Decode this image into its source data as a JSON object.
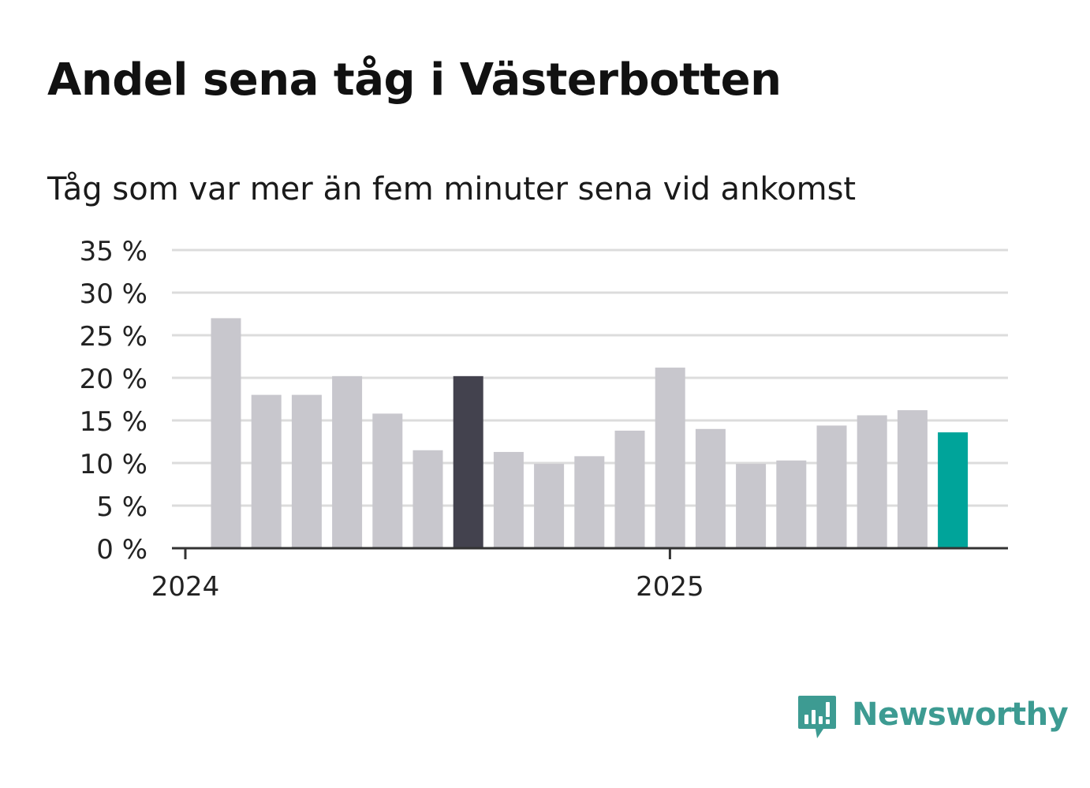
{
  "title": "Andel sena tåg i Västerbotten",
  "subtitle": "Tåg som var mer än fem minuter sena vid ankomst",
  "logo": {
    "text": "Newsworthy",
    "icon": "newsworthy-logo-icon",
    "color": "#3d9b92"
  },
  "chart_data": {
    "type": "bar",
    "x": [
      "2024-02",
      "2024-03",
      "2024-04",
      "2024-05",
      "2024-06",
      "2024-07",
      "2024-08",
      "2024-09",
      "2024-10",
      "2024-11",
      "2024-12",
      "2025-01",
      "2025-02",
      "2025-03",
      "2025-04",
      "2025-05",
      "2025-06",
      "2025-07",
      "2025-08"
    ],
    "values": [
      27,
      18,
      18,
      20.2,
      15.8,
      11.5,
      20.2,
      11.3,
      9.9,
      10.8,
      13.8,
      21.2,
      14,
      9.9,
      10.3,
      14.4,
      15.6,
      16.2,
      13.6
    ],
    "colors": {
      "default": "#c8c7cd",
      "highlight": "#43424e",
      "latest": "#00a49a"
    },
    "highlight_index": 6,
    "latest_index": 18,
    "ylim": [
      0,
      35
    ],
    "yticks": [
      0,
      5,
      10,
      15,
      20,
      25,
      30,
      35
    ],
    "ytick_labels": [
      "0 %",
      "5 %",
      "10 %",
      "15 %",
      "20 %",
      "25 %",
      "30 %",
      "35 %"
    ],
    "xticks": [
      "2024-01",
      "2025-01"
    ],
    "xtick_labels": [
      "2024",
      "2025"
    ],
    "grid": true
  }
}
